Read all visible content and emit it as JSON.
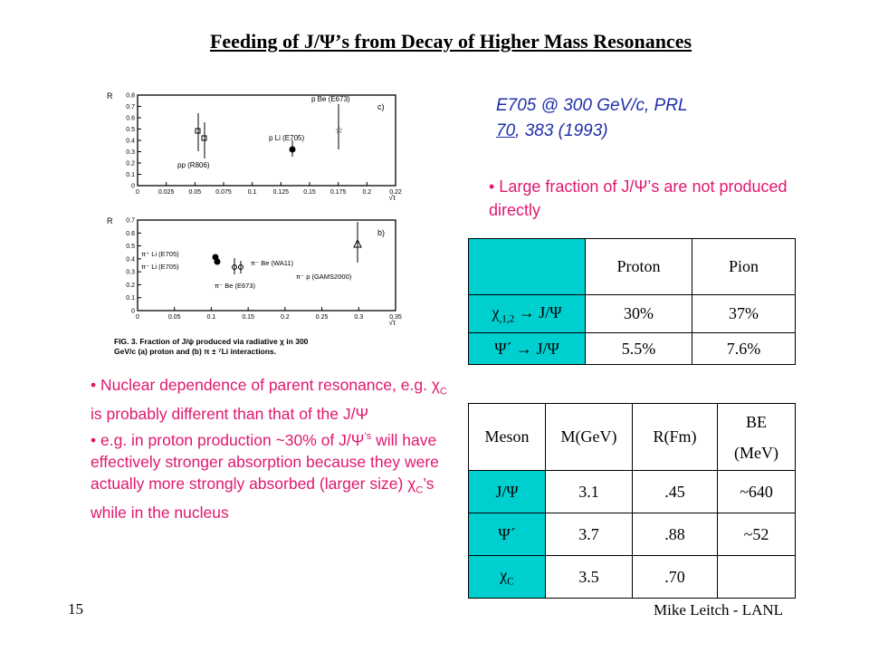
{
  "title": "Feeding of J/Ψ’s from Decay of Higher Mass Resonances",
  "reference": {
    "line1": "E705 @ 300 GeV/c, PRL",
    "volume": "70",
    "rest": ", 383 (1993)"
  },
  "bullet_top": "• Large fraction of J/Ψ’s are not produced directly",
  "bullets_left": {
    "b1_a": "• Nuclear dependence of parent resonance, e.g. χ",
    "b1_sub": "C",
    "b1_b": " is probably different than that of the J/Ψ",
    "b2_a": "• e.g. in proton production ~30% of J/Ψ",
    "b2_sup": "’s",
    "b2_b": " will have effectively stronger absorption because they were actually more strongly absorbed (larger size) χ",
    "b2_sub": "C",
    "b2_c": "’s while in the nucleus"
  },
  "table1": {
    "headers": [
      "",
      "Proton",
      "Pion"
    ],
    "rows": [
      {
        "label": "χ",
        "label_sub": ",1,2",
        "label_rest": " → J/Ψ",
        "cells": [
          "30%",
          "37%"
        ]
      },
      {
        "label": "Ψ´ → J/Ψ",
        "cells": [
          "5.5%",
          "7.6%"
        ]
      }
    ]
  },
  "table2": {
    "headers": [
      "Meson",
      "M(GeV)",
      "R(Fm)",
      "BE",
      "(MeV)"
    ],
    "rows": [
      {
        "label": "J/Ψ",
        "cells": [
          "3.1",
          ".45",
          "~640"
        ]
      },
      {
        "label": "Ψ´",
        "cells": [
          "3.7",
          ".88",
          "~52"
        ]
      },
      {
        "label": "χ",
        "label_sub": "C",
        "cells": [
          "3.5",
          ".70",
          ""
        ]
      }
    ]
  },
  "figure": {
    "top_panel": {
      "ylabel": "R",
      "yticks": [
        "0.8",
        "0.7",
        "0.6",
        "0.5",
        "0.4",
        "0.3",
        "0.2",
        "0.1",
        "0"
      ],
      "xticks": [
        "0",
        "0.025",
        "0.05",
        "0.075",
        "0.1",
        "0.125",
        "0.15",
        "0.175",
        "0.2",
        "0.22"
      ],
      "panel_tag": "c)",
      "labels": [
        "p Be (E673)",
        "p Li (E705)",
        "pp (R806)"
      ],
      "xlabel": "√τ"
    },
    "bottom_panel": {
      "ylabel": "R",
      "yticks": [
        "0.7",
        "0.6",
        "0.5",
        "0.4",
        "0.3",
        "0.2",
        "0.1",
        "0"
      ],
      "xticks": [
        "0",
        "0.05",
        "0.1",
        "0.15",
        "0.2",
        "0.25",
        "0.3",
        "0.35"
      ],
      "panel_tag": "b)",
      "labels": [
        "π⁺ Li (E705)",
        "π⁻ Li (E705)",
        "π⁻ Be (WA11)",
        "π⁻ p (GAMS2000)",
        "π⁻ Be (E673)"
      ],
      "xlabel": "√τ"
    },
    "caption": [
      "FIG. 3.  Fraction of J/ψ produced via radiative χ in 300",
      "GeV/c (a) proton and (b) π ± ⁷Li interactions."
    ]
  },
  "slide_number": "15",
  "footer": "Mike Leitch - LANL"
}
